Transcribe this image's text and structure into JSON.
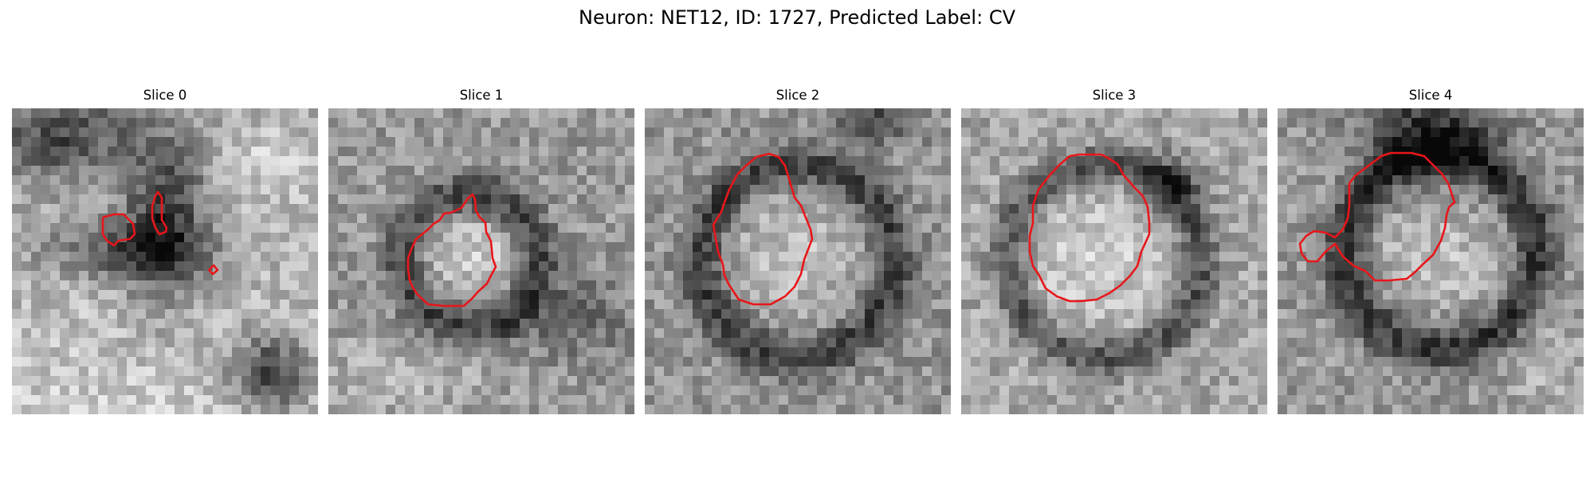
{
  "figure": {
    "title": "Neuron: NET12, ID: 1727, Predicted Label: CV"
  },
  "panels": [
    {
      "title": "Slice 0"
    },
    {
      "title": "Slice 1"
    },
    {
      "title": "Slice 2"
    },
    {
      "title": "Slice 3"
    },
    {
      "title": "Slice 4"
    }
  ],
  "colors": {
    "contour": "#e8161a"
  }
}
